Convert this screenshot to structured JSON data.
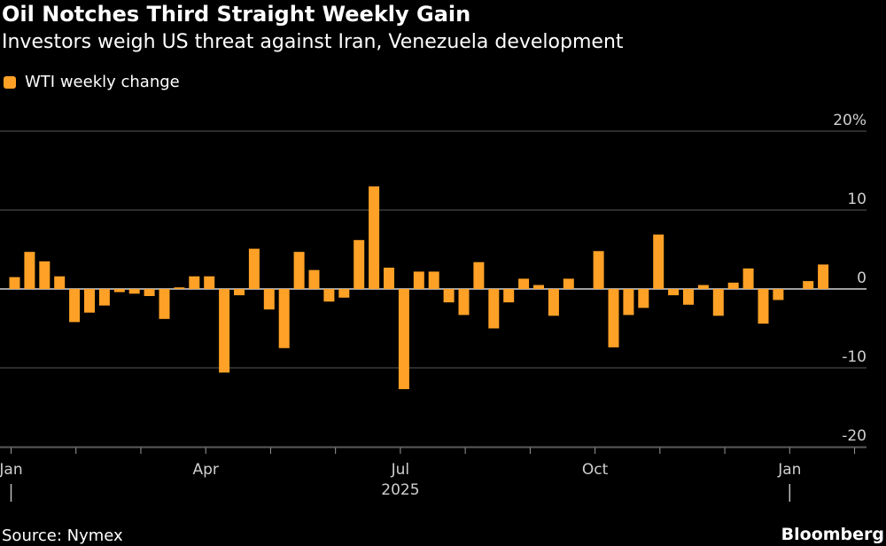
{
  "title": "Oil Notches Third Straight Weekly Gain",
  "subtitle": "Investors weigh US threat against Iran, Venezuela development",
  "source": "Source: Nymex",
  "brand": "Bloomberg",
  "colors": {
    "background": "#000000",
    "bar": "#ffa126",
    "grid": "#5a5a5a",
    "text": "#ffffff",
    "axis_text": "#cfcfcf"
  },
  "chart_data": {
    "type": "bar",
    "title": "Oil Notches Third Straight Weekly Gain",
    "subtitle": "Investors weigh US threat against Iran, Venezuela development",
    "xlabel": "",
    "ylabel": "",
    "ylim": [
      -20,
      20
    ],
    "y_ticks": [
      20,
      10,
      0,
      -10,
      -20
    ],
    "y_tick_labels": [
      "20%",
      "10",
      "0",
      "-10",
      "-20"
    ],
    "x_ticks": [
      "2025-01",
      "2025-04",
      "2025-07",
      "2025-10",
      "2026-01"
    ],
    "x_tick_labels": [
      "Jan",
      "Apr",
      "Jul",
      "Oct",
      "Jan"
    ],
    "year_label": "2025",
    "grid": true,
    "legend_position": "top-left",
    "series": [
      {
        "name": "WTI weekly change",
        "values": [
          1.5,
          4.7,
          3.5,
          1.6,
          -4.2,
          -3.0,
          -2.1,
          -0.4,
          -0.6,
          -0.9,
          -3.8,
          0.2,
          1.6,
          1.6,
          -10.6,
          -0.8,
          5.1,
          -2.6,
          -7.5,
          4.7,
          2.4,
          -1.6,
          -1.1,
          6.2,
          13.0,
          2.7,
          -12.7,
          2.2,
          2.2,
          -1.7,
          -3.3,
          3.4,
          -5.0,
          -1.7,
          1.3,
          0.5,
          -3.4,
          1.3,
          0.0,
          4.8,
          -7.4,
          -3.3,
          -2.4,
          6.9,
          -0.8,
          -2.0,
          0.5,
          -3.4,
          0.8,
          2.6,
          -4.4,
          -1.4,
          0.0,
          1.0,
          3.1
        ]
      }
    ]
  }
}
